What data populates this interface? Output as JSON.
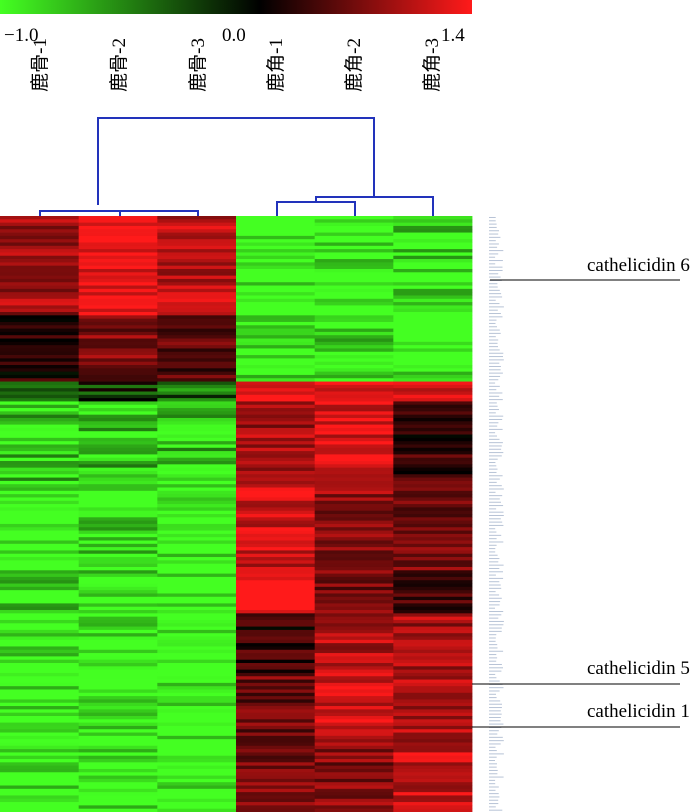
{
  "chart_data": {
    "type": "heatmap",
    "title": "",
    "color_scale": {
      "min": -1.0,
      "mid": 0.0,
      "max": 1.4,
      "tick_labels": [
        "−1.0",
        "0.0",
        "1.4"
      ],
      "low_color": "#44ff22",
      "mid_color": "#000000",
      "high_color": "#ff1a1a"
    },
    "columns": [
      "鹿骨-1",
      "鹿骨-2",
      "鹿骨-3",
      "鹿角-1",
      "鹿角-2",
      "鹿角-3"
    ],
    "column_groups": [
      {
        "name": "鹿骨",
        "members": [
          "鹿骨-1",
          "鹿骨-2",
          "鹿骨-3"
        ]
      },
      {
        "name": "鹿角",
        "members": [
          "鹿角-1",
          "鹿角-2",
          "鹿角-3"
        ]
      }
    ],
    "dendrogram_color": "#2233bb",
    "annotations": [
      "cathelicidin 6",
      "cathelicidin 5",
      "cathelicidin 1"
    ],
    "row_blocks": [
      {
        "rows": 30,
        "values": [
          0.9,
          1.3,
          1.0,
          -1.0,
          -1.0,
          -0.9
        ]
      },
      {
        "rows": 20,
        "values": [
          0.2,
          0.7,
          0.5,
          -1.0,
          -0.9,
          -1.0
        ]
      },
      {
        "rows": 6,
        "values": [
          -0.3,
          -0.2,
          -0.4,
          1.4,
          1.3,
          1.2
        ]
      },
      {
        "rows": 24,
        "values": [
          -0.8,
          -0.8,
          -0.8,
          0.9,
          1.2,
          0.3
        ]
      },
      {
        "rows": 28,
        "values": [
          -1.0,
          -0.9,
          -1.0,
          1.1,
          0.8,
          0.6
        ]
      },
      {
        "rows": 12,
        "values": [
          -0.9,
          -1.0,
          -1.0,
          1.4,
          0.6,
          0.4
        ]
      },
      {
        "rows": 18,
        "values": [
          -1.0,
          -1.0,
          -1.0,
          0.3,
          1.0,
          0.9
        ]
      },
      {
        "rows": 22,
        "values": [
          -1.0,
          -1.0,
          -1.0,
          0.6,
          1.1,
          1.0
        ]
      },
      {
        "rows": 20,
        "values": [
          -1.0,
          -1.0,
          -1.0,
          0.7,
          0.7,
          1.1
        ]
      }
    ]
  }
}
